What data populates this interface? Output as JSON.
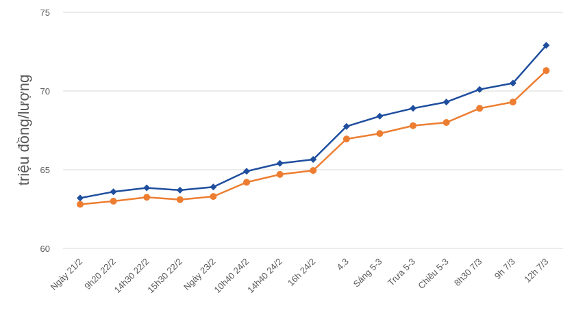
{
  "chart_data": {
    "type": "line",
    "title": "",
    "xlabel": "",
    "ylabel": "triệu đồng/lượng",
    "ylim": [
      60,
      75
    ],
    "yticks": [
      60,
      65,
      70,
      75
    ],
    "grid": true,
    "legend": "none",
    "categories": [
      "Ngày 21/2",
      "9h20 22/2",
      "14h30 22/2",
      "15h30 22/2",
      "Ngày 23/2",
      "10h40 24/2",
      "14h40 24/2",
      "16h 24/2",
      "4.3",
      "Sáng 5-3",
      "Trưa 5-3",
      "Chiều 5-3",
      "8h30 7/3",
      "9h 7/3",
      "12h 7/3"
    ],
    "series": [
      {
        "color": "#1f4e9e",
        "marker": "diamond",
        "values": [
          63.2,
          63.6,
          63.85,
          63.7,
          63.9,
          64.9,
          65.4,
          65.65,
          67.75,
          68.4,
          68.9,
          69.3,
          70.1,
          70.5,
          72.9
        ]
      },
      {
        "color": "#ed7d31",
        "marker": "circle",
        "values": [
          62.8,
          63.0,
          63.25,
          63.1,
          63.3,
          64.2,
          64.7,
          64.95,
          66.95,
          67.3,
          67.8,
          68.0,
          68.9,
          69.3,
          71.3
        ]
      }
    ],
    "colors": {
      "grid": "#d9d9d9",
      "text": "#595959"
    }
  }
}
